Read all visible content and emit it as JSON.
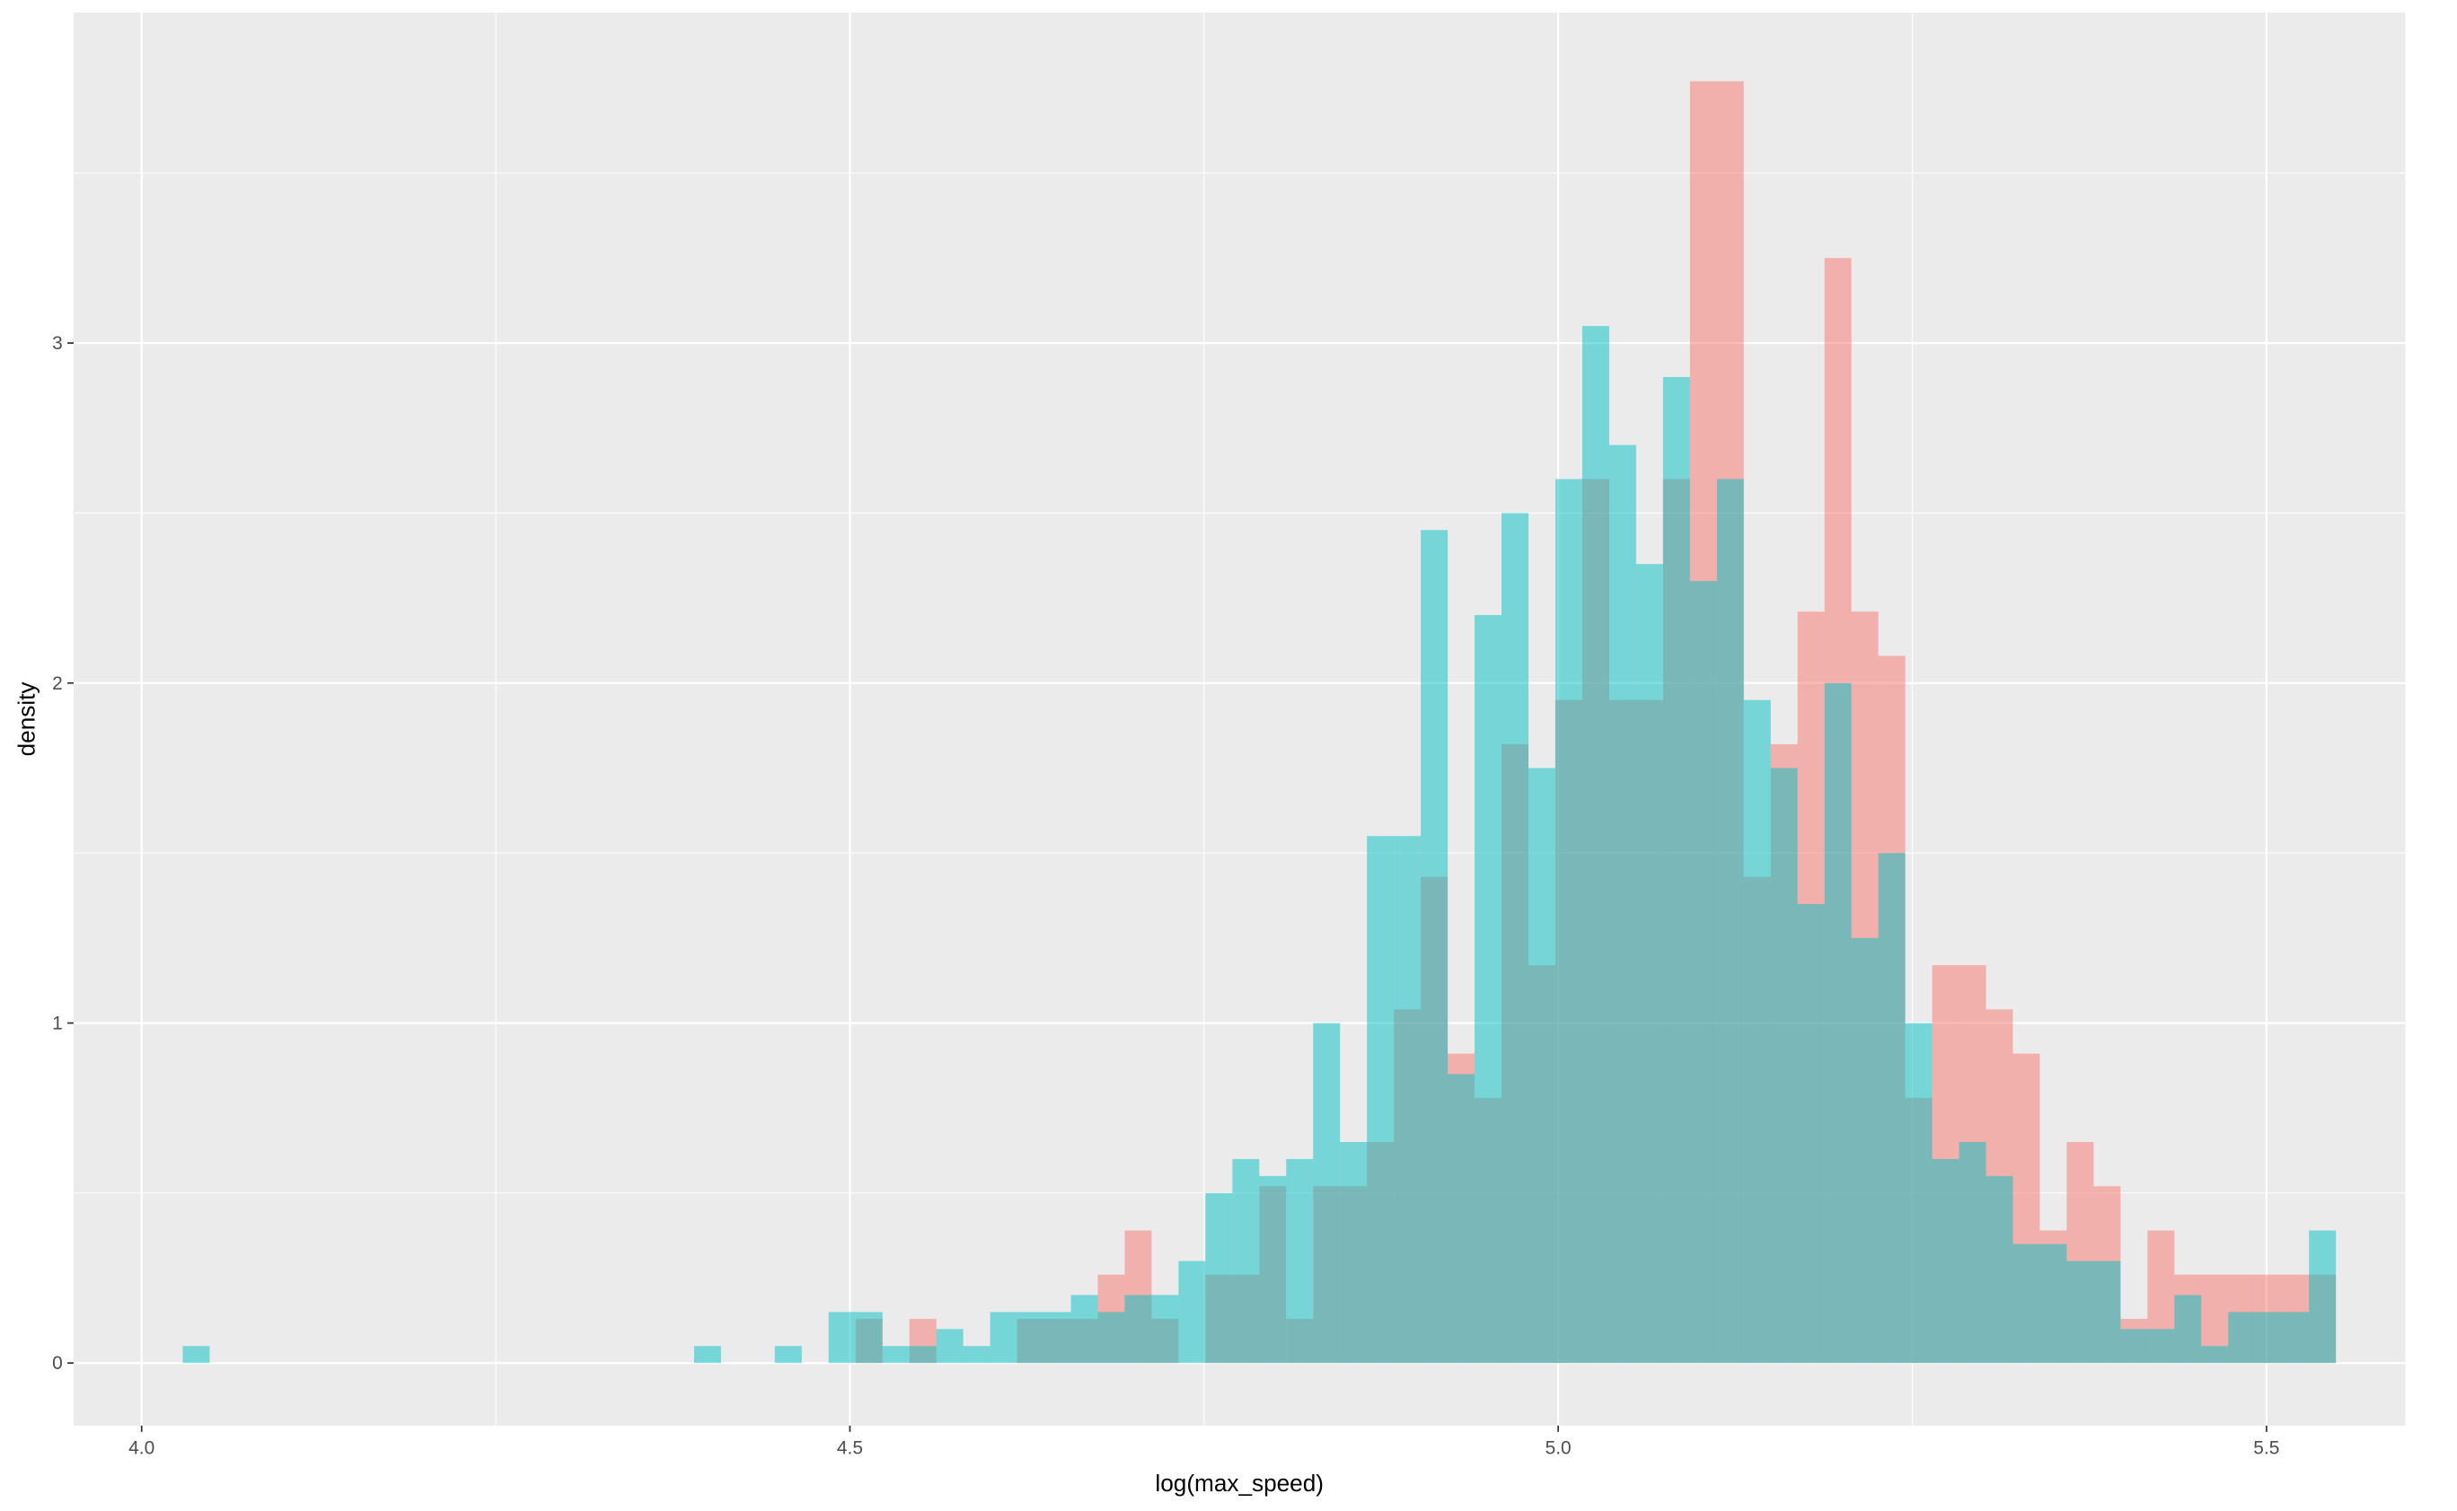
{
  "chart_data": {
    "type": "histogram",
    "x_label": "log(max_speed)",
    "y_label": "density",
    "bins": [
      4.029,
      4.048,
      4.067,
      4.086,
      4.105,
      4.124,
      4.143,
      4.162,
      4.181,
      4.2,
      4.219,
      4.238,
      4.257,
      4.276,
      4.295,
      4.314,
      4.333,
      4.352,
      4.371,
      4.39,
      4.409,
      4.428,
      4.447,
      4.466,
      4.485,
      4.504,
      4.523,
      4.542,
      4.561,
      4.58,
      4.599,
      4.618,
      4.637,
      4.656,
      4.675,
      4.694,
      4.713,
      4.732,
      4.751,
      4.77,
      4.789,
      4.808,
      4.827,
      4.846,
      4.865,
      4.884,
      4.903,
      4.922,
      4.941,
      4.96,
      4.979,
      4.998,
      5.017,
      5.036,
      5.055,
      5.074,
      5.093,
      5.112,
      5.131,
      5.15,
      5.169,
      5.188,
      5.207,
      5.226,
      5.245,
      5.264,
      5.283,
      5.302,
      5.321,
      5.34,
      5.359,
      5.378,
      5.397,
      5.416,
      5.435,
      5.454,
      5.473,
      5.492,
      5.511,
      5.53,
      5.549
    ],
    "series": [
      {
        "color": "#F8766D",
        "values": [
          0,
          0,
          0,
          0,
          0,
          0,
          0,
          0,
          0,
          0,
          0,
          0,
          0,
          0,
          0,
          0,
          0,
          0,
          0,
          0,
          0,
          0,
          0,
          0,
          0,
          0.13,
          0,
          0.13,
          0,
          0,
          0,
          0.13,
          0.13,
          0.13,
          0.26,
          0.39,
          0.13,
          0,
          0.26,
          0.26,
          0.52,
          0.13,
          0.52,
          0.52,
          0.65,
          1.04,
          1.43,
          0.91,
          0.78,
          1.82,
          1.17,
          1.95,
          2.6,
          1.95,
          1.95,
          2.6,
          3.77,
          3.77,
          1.43,
          1.82,
          2.21,
          3.25,
          2.21,
          2.08,
          0.78,
          1.17,
          1.17,
          1.04,
          0.91,
          0.39,
          0.65,
          0.52,
          0.13,
          0.39,
          0.26,
          0.26,
          0.26,
          0.26,
          0.26,
          0.26
        ]
      },
      {
        "color": "#00BFC4",
        "values": [
          0.05,
          0,
          0,
          0,
          0,
          0,
          0,
          0,
          0,
          0,
          0,
          0,
          0,
          0,
          0,
          0,
          0,
          0,
          0,
          0.05,
          0,
          0,
          0.05,
          0,
          0.15,
          0.15,
          0.05,
          0.05,
          0.1,
          0.05,
          0.15,
          0.15,
          0.15,
          0.2,
          0.15,
          0.2,
          0.2,
          0.3,
          0.5,
          0.6,
          0.55,
          0.6,
          1.0,
          0.65,
          1.55,
          1.55,
          2.45,
          0.85,
          2.2,
          2.5,
          1.75,
          2.6,
          3.05,
          2.7,
          2.35,
          2.9,
          2.3,
          2.6,
          1.95,
          1.75,
          1.35,
          2.0,
          1.25,
          1.5,
          1.0,
          0.6,
          0.65,
          0.55,
          0.35,
          0.35,
          0.3,
          0.3,
          0.1,
          0.1,
          0.2,
          0.05,
          0.15,
          0.15,
          0.15,
          0.39
        ]
      }
    ],
    "opacity": 0.5,
    "xlim": [
      3.952,
      5.598
    ],
    "ylim": [
      -0.184,
      3.972
    ],
    "xticks": [
      {
        "value": 4,
        "label": "4.0"
      },
      4.5,
      {
        "value": 5,
        "label": "5.0"
      },
      5.5
    ],
    "yticks": [
      0,
      1,
      2,
      3
    ],
    "grid": true,
    "panel_color": "#EBEBEB"
  }
}
